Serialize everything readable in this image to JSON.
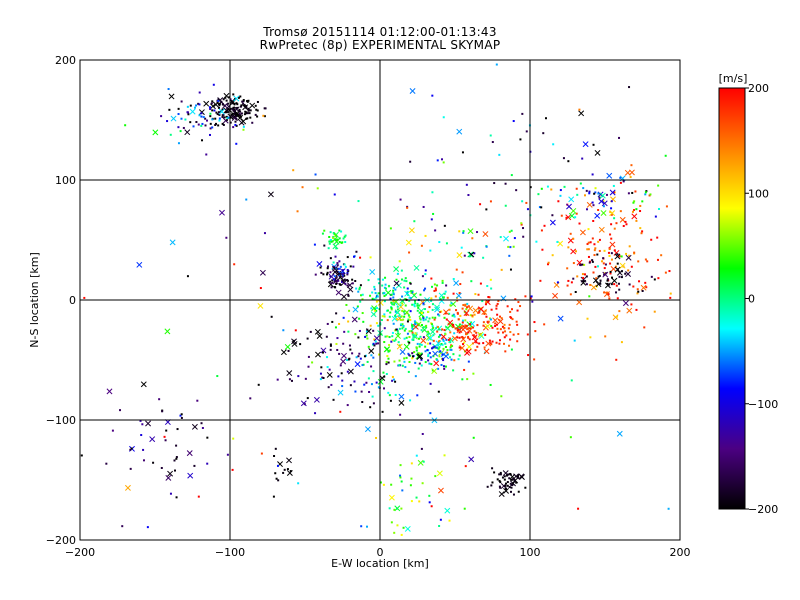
{
  "title": "Tromsø 20151114 01:12:00-01:13:43",
  "subtitle": "RwPretec (8p) EXPERIMENTAL SKYMAP",
  "chart_data": {
    "type": "scatter",
    "xlabel": "E-W location [km]",
    "ylabel": "N-S location [km]",
    "xlim": [
      -200,
      200
    ],
    "ylim": [
      -200,
      200
    ],
    "xticks": [
      -200,
      -100,
      0,
      100,
      200
    ],
    "yticks": [
      -200,
      -100,
      0,
      100,
      200
    ],
    "grid": true,
    "colorbar": {
      "label": "[m/s]",
      "range": [
        -200,
        200
      ],
      "ticks": [
        200,
        100,
        0,
        -100,
        -200
      ],
      "colormap": [
        "#000000",
        "#4b0082",
        "#0000ff",
        "#00ffff",
        "#00ff00",
        "#ffff00",
        "#ff8000",
        "#ff0000"
      ]
    },
    "clusters": [
      {
        "x": -97,
        "y": 158,
        "sx": 9,
        "sy": 6,
        "n": 140,
        "v": -195,
        "vs": 15
      },
      {
        "x": -120,
        "y": 150,
        "sx": 14,
        "sy": 10,
        "n": 70,
        "v": -120,
        "vs": 80
      },
      {
        "x": -28,
        "y": 17,
        "sx": 6,
        "sy": 6,
        "n": 60,
        "v": -180,
        "vs": 30
      },
      {
        "x": -28,
        "y": 52,
        "sx": 5,
        "sy": 4,
        "n": 35,
        "v": 20,
        "vs": 20
      },
      {
        "x": -30,
        "y": 30,
        "sx": 7,
        "sy": 7,
        "n": 35,
        "v": -120,
        "vs": 60
      },
      {
        "x": 25,
        "y": -25,
        "sx": 22,
        "sy": 18,
        "n": 320,
        "v": 20,
        "vs": 45
      },
      {
        "x": 10,
        "y": 0,
        "sx": 12,
        "sy": 10,
        "n": 110,
        "v": -10,
        "vs": 35
      },
      {
        "x": 65,
        "y": -20,
        "sx": 17,
        "sy": 14,
        "n": 200,
        "v": 180,
        "vs": 25
      },
      {
        "x": 38,
        "y": -45,
        "sx": 8,
        "sy": 6,
        "n": 45,
        "v": -40,
        "vs": 40
      },
      {
        "x": 0,
        "y": -60,
        "sx": 22,
        "sy": 20,
        "n": 90,
        "v": -120,
        "vs": 90
      },
      {
        "x": 150,
        "y": 45,
        "sx": 22,
        "sy": 30,
        "n": 170,
        "v": 160,
        "vs": 50
      },
      {
        "x": 150,
        "y": 20,
        "sx": 12,
        "sy": 10,
        "n": 55,
        "v": -190,
        "vs": 20
      },
      {
        "x": 150,
        "y": 85,
        "sx": 18,
        "sy": 10,
        "n": 50,
        "v": -60,
        "vs": 90
      },
      {
        "x": 85,
        "y": -150,
        "sx": 6,
        "sy": 5,
        "n": 55,
        "v": -195,
        "vs": 10
      },
      {
        "x": -40,
        "y": -50,
        "sx": 18,
        "sy": 25,
        "n": 60,
        "v": -175,
        "vs": 30
      },
      {
        "x": -145,
        "y": -115,
        "sx": 18,
        "sy": 22,
        "n": 45,
        "v": -160,
        "vs": 50
      },
      {
        "x": -65,
        "y": -140,
        "sx": 4,
        "sy": 5,
        "n": 12,
        "v": -200,
        "vs": 5
      },
      {
        "x": 20,
        "y": -165,
        "sx": 12,
        "sy": 20,
        "n": 45,
        "v": 40,
        "vs": 50
      },
      {
        "x": 70,
        "y": 40,
        "sx": 35,
        "sy": 25,
        "n": 70,
        "v": -20,
        "vs": 110
      },
      {
        "x": 95,
        "y": 110,
        "sx": 40,
        "sy": 30,
        "n": 45,
        "v": -130,
        "vs": 80
      },
      {
        "x": 0,
        "y": 0,
        "sx": 140,
        "sy": 140,
        "n": 130,
        "v": 0,
        "vs": 140
      }
    ]
  }
}
